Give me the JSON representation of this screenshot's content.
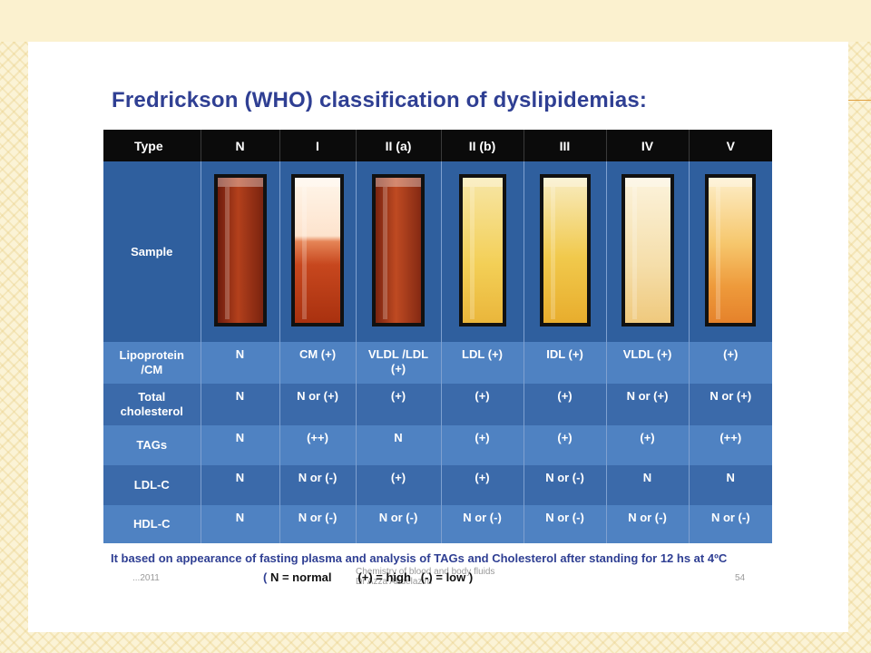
{
  "title": "Fredrickson (WHO) classification of dyslipidemias:",
  "table": {
    "headers": [
      "Type",
      "N",
      "I",
      "II (a)",
      "II (b)",
      "III",
      "IV",
      "V"
    ],
    "sample_label": "Sample",
    "rows": [
      {
        "label": "Lipoprotein\n/CM",
        "cells": [
          "N",
          "CM (+)",
          "VLDL /LDL\n(+)",
          "LDL (+)",
          "IDL (+)",
          "VLDL (+)",
          "(+)"
        ]
      },
      {
        "label": "Total\ncholesterol",
        "cells": [
          "N",
          "N or (+)",
          "(+)",
          "(+)",
          "(+)",
          "N or (+)",
          "N or (+)"
        ]
      },
      {
        "label": "TAGs",
        "cells": [
          "N",
          "(++)",
          "N",
          "(+)",
          "(+)",
          "(+)",
          "(++)"
        ]
      },
      {
        "label": "LDL-C",
        "cells": [
          "N",
          "N  or (-)",
          "(+)",
          "(+)",
          "N or (-)",
          "N",
          "N"
        ]
      },
      {
        "label": "HDL-C",
        "cells": [
          "N",
          "N or (-)",
          "N or (-)",
          "N or (-)",
          "N or (-)",
          "N or (-)",
          "N or (-)"
        ]
      }
    ]
  },
  "footnote": "It based on appearance of fasting plasma and analysis of TAGs and Cholesterol after standing for 12 hs at 4ºC",
  "legend": {
    "open": "(",
    "normal": "N = normal",
    "high": "(+) = high",
    "low": "(-) = low",
    "close": ")"
  },
  "footer": {
    "date": "...2011",
    "center_line1": "Chemistry of blood and body fluids",
    "center_line2": "Dr Azza Abdelazim",
    "page": "54"
  },
  "colors": {
    "title": "#2f3f93",
    "header_bg": "#0b0b0b",
    "row_light": "#4f82c2",
    "row_dark": "#3b6aaa",
    "sample_bg": "#2f5f9e"
  }
}
